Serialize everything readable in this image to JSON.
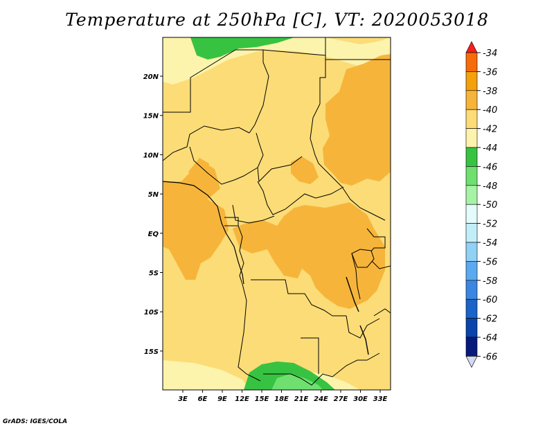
{
  "title": "Temperature at 250hPa [C], VT: 2020053018",
  "credit": "GrADS: IGES/COLA",
  "map": {
    "lon_ticks": [
      "3E",
      "6E",
      "9E",
      "12E",
      "15E",
      "18E",
      "21E",
      "24E",
      "27E",
      "30E",
      "33E"
    ],
    "lat_ticks": [
      "20N",
      "15N",
      "10N",
      "5N",
      "EQ",
      "5S",
      "10S",
      "15S"
    ]
  },
  "colorbar": {
    "levels": [
      "-34",
      "-36",
      "-38",
      "-40",
      "-42",
      "-44",
      "-46",
      "-48",
      "-50",
      "-52",
      "-54",
      "-56",
      "-58",
      "-60",
      "-62",
      "-64",
      "-66"
    ],
    "colors": [
      "#f5201c",
      "#f66c0a",
      "#f5a10b",
      "#f6b53a",
      "#fbdc77",
      "#fcf3ac",
      "#37c341",
      "#6fe06f",
      "#a6f3a5",
      "#e3fbfa",
      "#c2eef9",
      "#91d1f5",
      "#5baaef",
      "#3a86e0",
      "#1a63c9",
      "#0844a9",
      "#061a7b",
      "#d5d8f3"
    ]
  }
}
